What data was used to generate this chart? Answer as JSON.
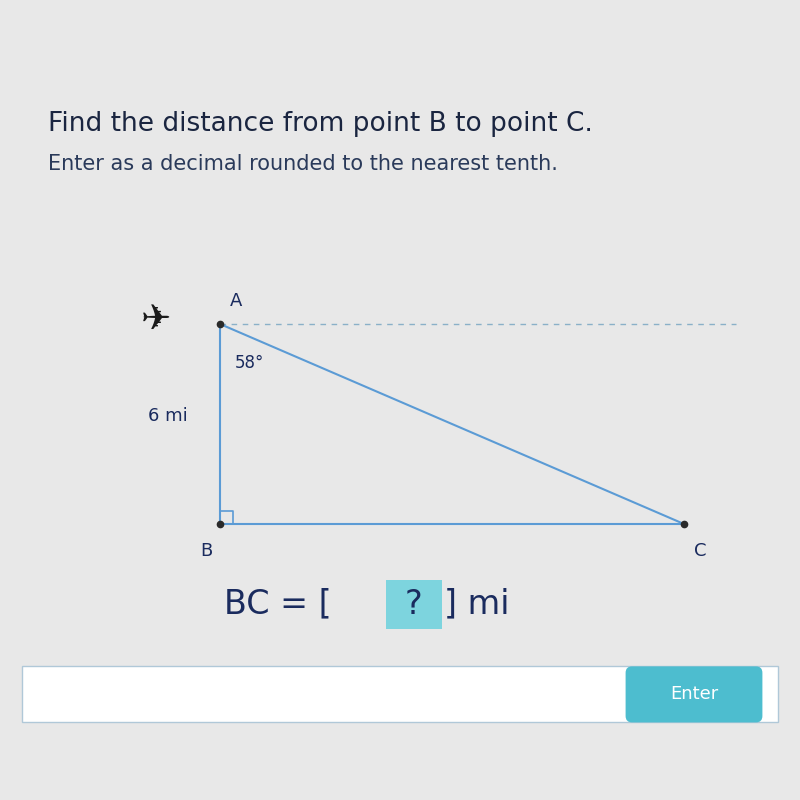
{
  "title_line1": "Find the distance from point B to point C.",
  "title_line2": "Enter as a decimal rounded to the nearest tenth.",
  "title_fontsize": 19,
  "subtitle_fontsize": 15,
  "bg_color": "#e8e8e8",
  "top_bar_color": "#6abf78",
  "point_A": [
    0.275,
    0.595
  ],
  "point_B": [
    0.275,
    0.345
  ],
  "point_C": [
    0.855,
    0.345
  ],
  "angle_label": "58°",
  "side_label": "6 mi",
  "bc_text_left": "BC = [",
  "bc_text_q": "?",
  "bc_text_right": "] mi",
  "bc_fontsize": 24,
  "triangle_color": "#5b9bd5",
  "dashed_color": "#8ab0c8",
  "label_color": "#1a2b5e",
  "point_color": "#2a2a2a",
  "enter_btn_color": "#4dbdcf",
  "enter_btn_text": "Enter",
  "input_box_color": "#ffffff",
  "question_box_color": "#7dd4de",
  "title_color": "#1a2540",
  "subtitle_color": "#2a3a5a"
}
